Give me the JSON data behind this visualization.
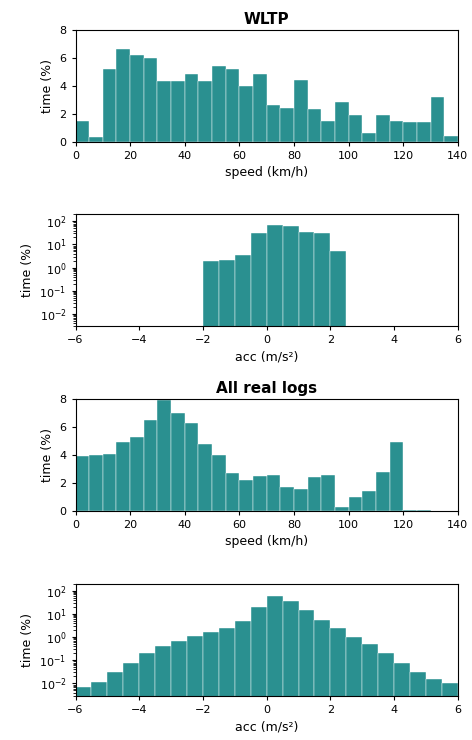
{
  "bar_color": "#2a9090",
  "wltp_speed_edges": [
    0,
    5,
    10,
    15,
    20,
    25,
    30,
    35,
    40,
    45,
    50,
    55,
    60,
    65,
    70,
    75,
    80,
    85,
    90,
    95,
    100,
    105,
    110,
    115,
    120,
    125,
    130,
    135,
    140
  ],
  "wltp_speed_values": [
    1.5,
    0.3,
    5.2,
    6.6,
    6.2,
    6.0,
    4.3,
    4.3,
    4.8,
    4.3,
    5.4,
    5.2,
    4.0,
    4.8,
    2.6,
    2.4,
    4.4,
    2.3,
    1.5,
    2.8,
    1.9,
    0.6,
    1.9,
    1.5,
    1.4,
    1.4,
    3.2,
    0.4
  ],
  "wltp_acc_edges": [
    -6.0,
    -5.5,
    -5.0,
    -4.5,
    -4.0,
    -3.5,
    -3.0,
    -2.5,
    -2.0,
    -1.5,
    -1.0,
    -0.5,
    0.0,
    0.5,
    1.0,
    1.5,
    2.0,
    2.5,
    3.0,
    3.5,
    4.0,
    4.5,
    5.0,
    5.5,
    6.0
  ],
  "wltp_acc_values": [
    0,
    0,
    0,
    0,
    0,
    0,
    0,
    0,
    2.0,
    2.2,
    3.5,
    30.0,
    70.0,
    60.0,
    35.0,
    30.0,
    5.0,
    0,
    0,
    0,
    0,
    0,
    0,
    0
  ],
  "real_speed_edges": [
    0,
    5,
    10,
    15,
    20,
    25,
    30,
    35,
    40,
    45,
    50,
    55,
    60,
    65,
    70,
    75,
    80,
    85,
    90,
    95,
    100,
    105,
    110,
    115,
    120,
    125,
    130,
    135,
    140
  ],
  "real_speed_values": [
    3.9,
    4.0,
    4.1,
    4.9,
    5.3,
    6.5,
    7.9,
    7.0,
    6.3,
    4.8,
    4.0,
    2.7,
    2.2,
    2.5,
    2.6,
    1.7,
    1.6,
    2.4,
    2.6,
    0.3,
    1.0,
    1.4,
    2.8,
    4.9,
    0.1,
    0.05,
    0.02,
    0.01
  ],
  "real_acc_edges": [
    -6.0,
    -5.5,
    -5.0,
    -4.5,
    -4.0,
    -3.5,
    -3.0,
    -2.5,
    -2.0,
    -1.5,
    -1.0,
    -0.5,
    0.0,
    0.5,
    1.0,
    1.5,
    2.0,
    2.5,
    3.0,
    3.5,
    4.0,
    4.5,
    5.0,
    5.5,
    6.0
  ],
  "real_acc_values": [
    0.007,
    0.012,
    0.03,
    0.08,
    0.2,
    0.4,
    0.7,
    1.1,
    1.6,
    2.5,
    5.0,
    20.0,
    60.0,
    35.0,
    15.0,
    5.5,
    2.5,
    1.0,
    0.5,
    0.2,
    0.08,
    0.03,
    0.015,
    0.01
  ],
  "title1": "WLTP",
  "title2": "All real logs",
  "xlabel_speed": "speed (km/h)",
  "xlabel_acc": "acc (m/s²)",
  "ylabel": "time (%)",
  "speed_xlim": [
    0,
    140
  ],
  "speed_ylim": [
    0,
    8
  ],
  "acc_xlim": [
    -6,
    6
  ],
  "acc_ylim": [
    0.003,
    200
  ],
  "speed_xticks": [
    0,
    20,
    40,
    60,
    80,
    100,
    120,
    140
  ],
  "acc_xticks": [
    -6,
    -4,
    -2,
    0,
    2,
    4,
    6
  ]
}
